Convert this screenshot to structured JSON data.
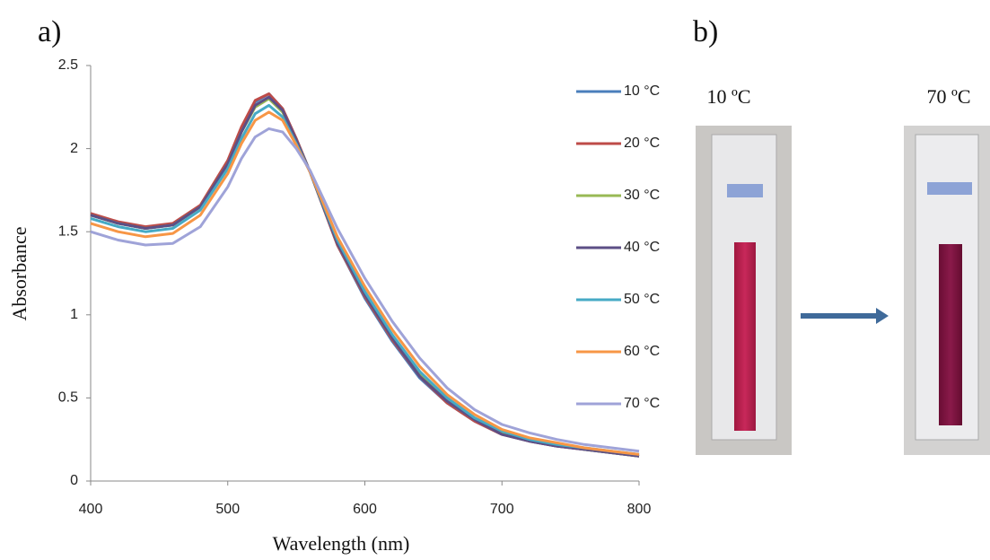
{
  "panels": {
    "a_label": "a)",
    "b_label": "b)",
    "photo_labels": [
      "10 ºC",
      "70 ºC"
    ]
  },
  "chart_data": {
    "type": "line",
    "x_label": "Wavelength (nm)",
    "y_label": "Absorbance",
    "x": [
      400,
      420,
      440,
      460,
      480,
      500,
      510,
      520,
      530,
      540,
      550,
      560,
      580,
      600,
      620,
      640,
      660,
      680,
      700,
      720,
      740,
      760,
      780,
      800
    ],
    "xlim": [
      400,
      800
    ],
    "xticks": [
      400,
      500,
      600,
      700,
      800
    ],
    "ylim": [
      0,
      2.5
    ],
    "yticks": [
      0,
      0.5,
      1,
      1.5,
      2,
      2.5
    ],
    "grid": false,
    "legend": "right",
    "series": [
      {
        "name": "10 °C",
        "color": "#4a7ebb",
        "values": [
          1.6,
          1.55,
          1.52,
          1.54,
          1.65,
          1.92,
          2.12,
          2.28,
          2.33,
          2.24,
          2.06,
          1.86,
          1.42,
          1.1,
          0.84,
          0.62,
          0.47,
          0.36,
          0.28,
          0.24,
          0.21,
          0.19,
          0.17,
          0.15
        ]
      },
      {
        "name": "20 °C",
        "color": "#be4b48",
        "values": [
          1.61,
          1.56,
          1.53,
          1.55,
          1.66,
          1.93,
          2.13,
          2.29,
          2.33,
          2.24,
          2.06,
          1.86,
          1.42,
          1.11,
          0.85,
          0.63,
          0.47,
          0.36,
          0.28,
          0.24,
          0.21,
          0.19,
          0.17,
          0.15
        ]
      },
      {
        "name": "30 °C",
        "color": "#98b954",
        "values": [
          1.6,
          1.55,
          1.52,
          1.54,
          1.65,
          1.91,
          2.1,
          2.25,
          2.3,
          2.22,
          2.05,
          1.86,
          1.43,
          1.12,
          0.86,
          0.64,
          0.48,
          0.37,
          0.29,
          0.25,
          0.22,
          0.19,
          0.17,
          0.15
        ]
      },
      {
        "name": "40 °C",
        "color": "#5c4f86",
        "values": [
          1.6,
          1.55,
          1.52,
          1.54,
          1.65,
          1.91,
          2.1,
          2.26,
          2.31,
          2.23,
          2.05,
          1.86,
          1.43,
          1.12,
          0.86,
          0.63,
          0.48,
          0.37,
          0.28,
          0.24,
          0.21,
          0.19,
          0.17,
          0.15
        ]
      },
      {
        "name": "50 °C",
        "color": "#46aac5",
        "values": [
          1.58,
          1.53,
          1.5,
          1.52,
          1.63,
          1.88,
          2.06,
          2.21,
          2.26,
          2.19,
          2.03,
          1.86,
          1.45,
          1.14,
          0.88,
          0.66,
          0.5,
          0.38,
          0.3,
          0.25,
          0.22,
          0.2,
          0.18,
          0.16
        ]
      },
      {
        "name": "60 °C",
        "color": "#f79646",
        "values": [
          1.55,
          1.5,
          1.47,
          1.49,
          1.6,
          1.85,
          2.03,
          2.17,
          2.22,
          2.17,
          2.02,
          1.86,
          1.47,
          1.17,
          0.91,
          0.69,
          0.52,
          0.4,
          0.31,
          0.26,
          0.23,
          0.2,
          0.18,
          0.16
        ]
      },
      {
        "name": "70 °C",
        "color": "#9fa3d8",
        "values": [
          1.5,
          1.45,
          1.42,
          1.43,
          1.53,
          1.77,
          1.94,
          2.07,
          2.12,
          2.1,
          2.0,
          1.87,
          1.52,
          1.22,
          0.96,
          0.74,
          0.56,
          0.43,
          0.34,
          0.29,
          0.25,
          0.22,
          0.2,
          0.18
        ]
      }
    ]
  }
}
